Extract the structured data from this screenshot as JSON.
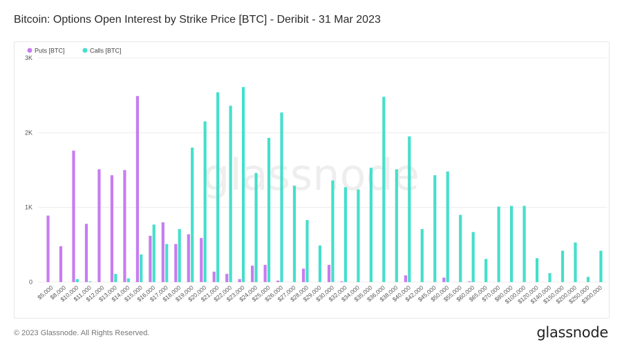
{
  "header": {
    "title": "Bitcoin: Options Open Interest by Strike Price [BTC] - Deribit - 31 Mar 2023"
  },
  "footer": {
    "copyright": "© 2023 Glassnode. All Rights Reserved.",
    "brand": "glassnode"
  },
  "watermark": "glassnode",
  "colors": {
    "puts": "#c77cf0",
    "calls": "#45dfcb",
    "grid": "#ececec",
    "axis_text": "#555555",
    "watermark": "#eeeeee"
  },
  "chart_data": {
    "type": "bar",
    "title": "Bitcoin: Options Open Interest by Strike Price [BTC] - Deribit - 31 Mar 2023",
    "xlabel": "",
    "ylabel": "",
    "ylim": [
      0,
      3000
    ],
    "yticks": [
      0,
      1000,
      2000,
      3000
    ],
    "ytick_labels": [
      "0",
      "1K",
      "2K",
      "3K"
    ],
    "grid": true,
    "legend_position": "top-left",
    "categories": [
      "$5,000",
      "$8,000",
      "$10,000",
      "$11,000",
      "$12,000",
      "$13,000",
      "$14,000",
      "$15,000",
      "$16,000",
      "$17,000",
      "$18,000",
      "$19,000",
      "$20,000",
      "$21,000",
      "$22,000",
      "$23,000",
      "$24,000",
      "$25,000",
      "$26,000",
      "$27,000",
      "$28,000",
      "$29,000",
      "$30,000",
      "$32,000",
      "$34,000",
      "$35,000",
      "$36,000",
      "$38,000",
      "$40,000",
      "$42,000",
      "$45,000",
      "$50,000",
      "$55,000",
      "$60,000",
      "$65,000",
      "$70,000",
      "$80,000",
      "$100,000",
      "$120,000",
      "$140,000",
      "$150,000",
      "$200,000",
      "$250,000",
      "$300,000"
    ],
    "series": [
      {
        "name": "Puts [BTC]",
        "values": [
          890,
          480,
          1760,
          780,
          1510,
          1430,
          1500,
          2490,
          620,
          800,
          510,
          640,
          590,
          140,
          110,
          40,
          220,
          230,
          20,
          0,
          180,
          0,
          230,
          10,
          0,
          0,
          0,
          0,
          90,
          0,
          0,
          60,
          0,
          10,
          0,
          0,
          0,
          0,
          0,
          0,
          0,
          0,
          0,
          0
        ]
      },
      {
        "name": "Calls [BTC]",
        "values": [
          0,
          0,
          40,
          10,
          0,
          110,
          50,
          370,
          770,
          510,
          710,
          1800,
          2150,
          2540,
          2360,
          2610,
          1460,
          1930,
          2270,
          1290,
          830,
          490,
          1360,
          1270,
          1240,
          1530,
          2480,
          1510,
          1950,
          710,
          1430,
          1480,
          900,
          670,
          310,
          1010,
          1020,
          1020,
          320,
          120,
          420,
          530,
          70,
          420
        ]
      }
    ]
  }
}
